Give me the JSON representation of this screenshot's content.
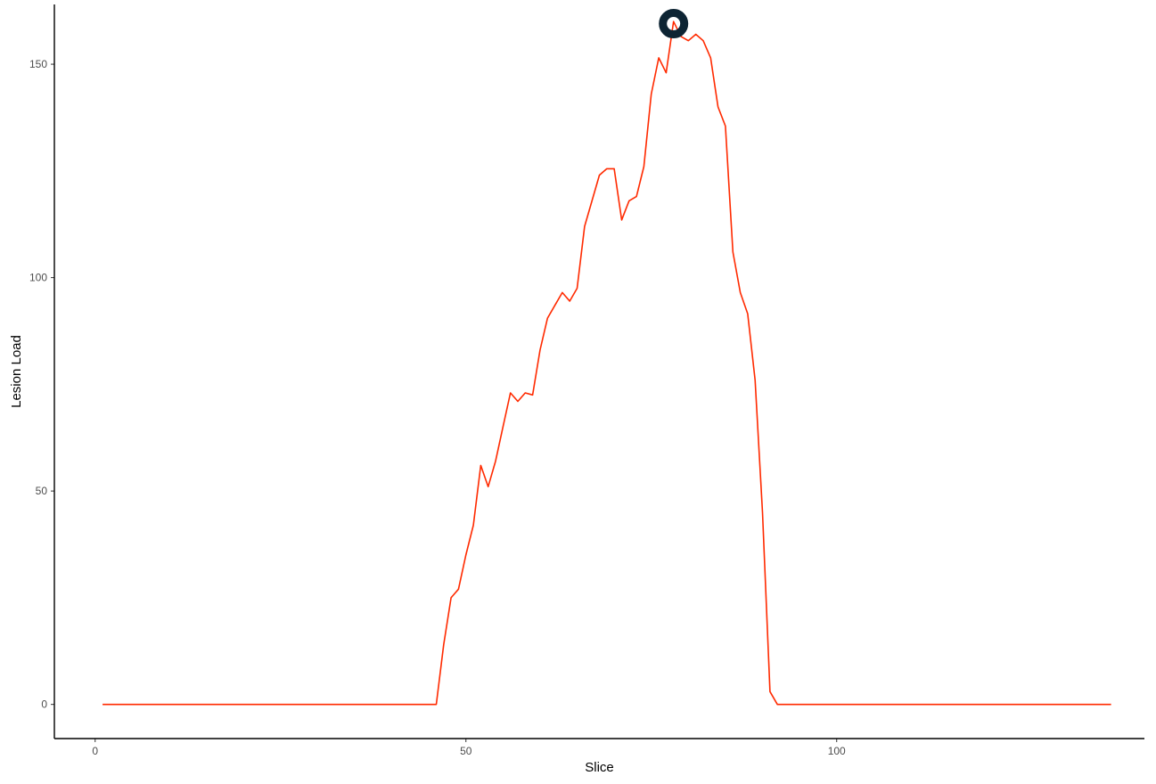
{
  "chart_data": {
    "type": "line",
    "title": "",
    "xlabel": "Slice",
    "ylabel": "Lesion Load",
    "xlim": [
      -5.5,
      141.5
    ],
    "ylim": [
      -8,
      164
    ],
    "grid": false,
    "legend": "none",
    "x_ticks": [
      0,
      50,
      100
    ],
    "y_ticks": [
      0,
      50,
      100,
      150
    ],
    "series": [
      {
        "color": "#ff2a00",
        "x": [
          1,
          2,
          3,
          4,
          5,
          6,
          7,
          8,
          9,
          10,
          11,
          12,
          13,
          14,
          15,
          16,
          17,
          18,
          19,
          20,
          21,
          22,
          23,
          24,
          25,
          26,
          27,
          28,
          29,
          30,
          31,
          32,
          33,
          34,
          35,
          36,
          37,
          38,
          39,
          40,
          41,
          42,
          43,
          44,
          45,
          46,
          47,
          48,
          49,
          50,
          51,
          52,
          53,
          54,
          55,
          56,
          57,
          58,
          59,
          60,
          61,
          62,
          63,
          64,
          65,
          66,
          67,
          68,
          69,
          70,
          71,
          72,
          73,
          74,
          75,
          76,
          77,
          78,
          79,
          80,
          81,
          82,
          83,
          84,
          85,
          86,
          87,
          88,
          89,
          90,
          91,
          92,
          93,
          94,
          95,
          96,
          97,
          98,
          99,
          100,
          101,
          102,
          103,
          104,
          105,
          106,
          107,
          108,
          109,
          110,
          111,
          112,
          113,
          114,
          115,
          116,
          117,
          118,
          119,
          120,
          121,
          122,
          123,
          124,
          125,
          126,
          127,
          128,
          129,
          130,
          131,
          132,
          133,
          134,
          135,
          136,
          137
        ],
        "y": [
          0,
          0,
          0,
          0,
          0,
          0,
          0,
          0,
          0,
          0,
          0,
          0,
          0,
          0,
          0,
          0,
          0,
          0,
          0,
          0,
          0,
          0,
          0,
          0,
          0,
          0,
          0,
          0,
          0,
          0,
          0,
          0,
          0,
          0,
          0,
          0,
          0,
          0,
          0,
          0,
          0,
          0,
          0,
          0,
          0,
          0,
          14,
          25,
          27,
          35,
          42,
          56,
          51,
          57,
          65,
          73,
          71,
          73,
          72.5,
          83,
          90.5,
          93.5,
          96.5,
          94.5,
          97.5,
          112,
          118,
          124,
          125.5,
          125.5,
          113.5,
          118,
          119,
          126,
          143,
          151.5,
          148,
          160,
          156.5,
          155.5,
          157,
          155.5,
          151.5,
          140,
          135.5,
          106,
          96.5,
          91.5,
          76,
          45,
          3,
          0,
          0,
          0,
          0,
          0,
          0,
          0,
          0,
          0,
          0,
          0,
          0,
          0,
          0,
          0,
          0,
          0,
          0,
          0,
          0,
          0,
          0,
          0,
          0,
          0,
          0,
          0,
          0,
          0,
          0,
          0,
          0,
          0,
          0,
          0,
          0,
          0,
          0,
          0,
          0,
          0,
          0,
          0,
          0,
          0,
          0
        ]
      }
    ],
    "marker": {
      "x": 78,
      "y": 159.5,
      "color": "#0d2433",
      "shape": "ring"
    }
  }
}
